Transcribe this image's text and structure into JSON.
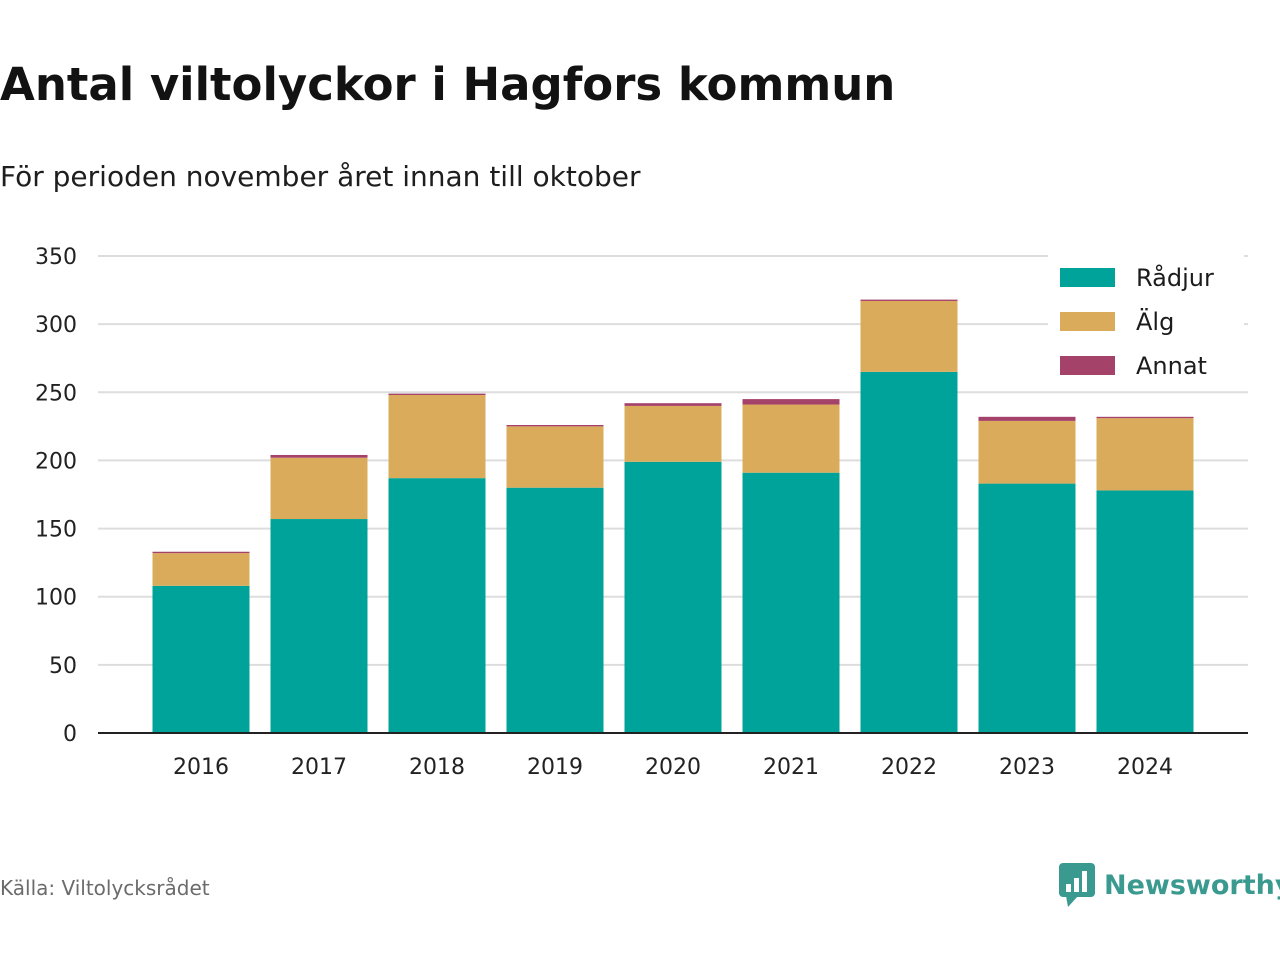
{
  "header": {
    "title": "Antal viltolyckor i Hagfors kommun",
    "subtitle": "För perioden november året innan till oktober"
  },
  "footer": {
    "source": "Källa: Viltolycksrådet",
    "brand": "Newsworthy",
    "brand_color": "#3a9a8f"
  },
  "chart_data": {
    "type": "bar",
    "stacked": true,
    "categories": [
      "2016",
      "2017",
      "2018",
      "2019",
      "2020",
      "2021",
      "2022",
      "2023",
      "2024"
    ],
    "series": [
      {
        "name": "Rådjur",
        "color": "#00a39a",
        "values": [
          108,
          157,
          187,
          180,
          199,
          191,
          265,
          183,
          178
        ]
      },
      {
        "name": "Älg",
        "color": "#dbab5c",
        "values": [
          24,
          45,
          61,
          45,
          41,
          50,
          52,
          46,
          53
        ]
      },
      {
        "name": "Annat",
        "color": "#a5426a",
        "values": [
          1,
          2,
          1,
          1,
          2,
          4,
          1,
          3,
          1
        ]
      }
    ],
    "ylim": [
      0,
      350
    ],
    "yticks": [
      0,
      50,
      100,
      150,
      200,
      250,
      300,
      350
    ],
    "grid": true,
    "legend_position": "top-right"
  }
}
